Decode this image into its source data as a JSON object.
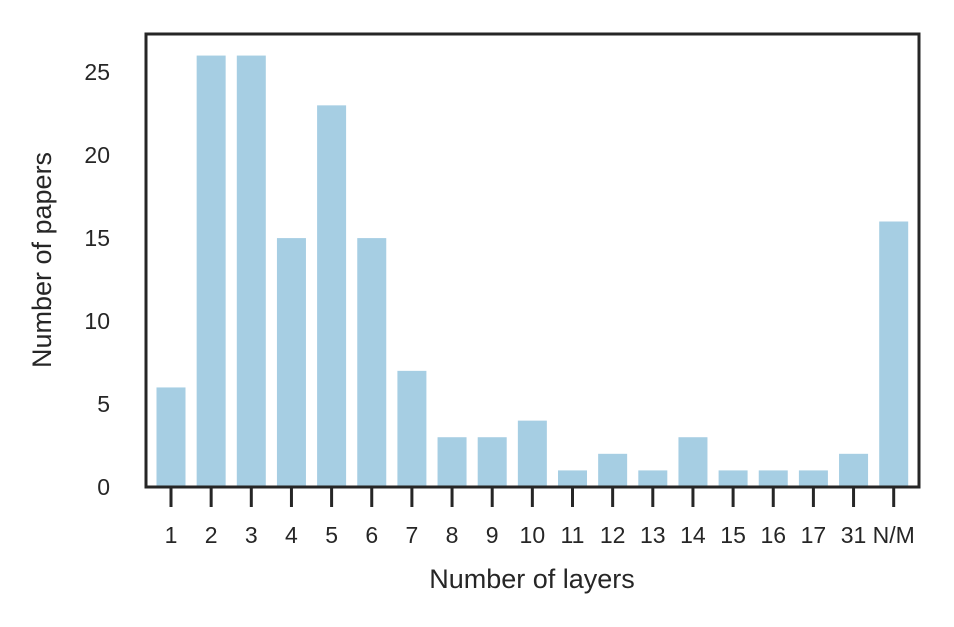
{
  "chart_data": {
    "type": "bar",
    "title": "",
    "xlabel": "Number of layers",
    "ylabel": "Number of papers",
    "categories": [
      "1",
      "2",
      "3",
      "4",
      "5",
      "6",
      "7",
      "8",
      "9",
      "10",
      "11",
      "12",
      "13",
      "14",
      "15",
      "16",
      "17",
      "31",
      "N/M"
    ],
    "values": [
      6,
      26,
      26,
      15,
      23,
      15,
      7,
      3,
      3,
      4,
      1,
      2,
      1,
      3,
      1,
      1,
      1,
      2,
      16
    ],
    "ylim": [
      0,
      27.3
    ],
    "yticks": [
      0,
      5,
      10,
      15,
      20,
      25
    ],
    "grid": false,
    "legend": "none",
    "bar_color": "#a6cee3",
    "frame_color": "#262626"
  }
}
